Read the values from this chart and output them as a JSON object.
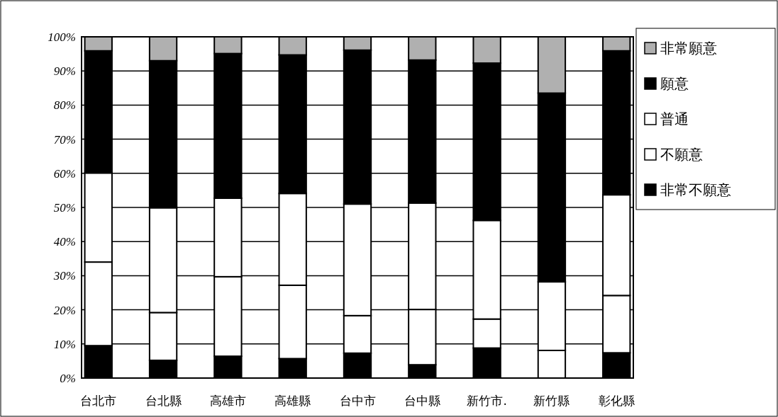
{
  "chart_data": {
    "type": "bar",
    "stacked": true,
    "categories": [
      "台北市",
      "台北縣",
      "高雄市",
      "高雄縣",
      "台中市",
      "台中縣",
      "新竹市.",
      "新竹縣",
      "彰化縣"
    ],
    "series": [
      {
        "name": "非常不願意",
        "color": "#000000",
        "values": [
          9.5,
          5.2,
          6.4,
          5.7,
          7.3,
          3.9,
          8.8,
          0,
          7.4
        ]
      },
      {
        "name": "不願意",
        "color": "#ffffff",
        "values": [
          24.5,
          14.0,
          23.3,
          21.5,
          11.0,
          16.2,
          8.5,
          8.1,
          16.8
        ]
      },
      {
        "name": "普通",
        "color": "#ffffff",
        "values": [
          26.1,
          30.7,
          23.0,
          26.9,
          32.7,
          31.2,
          28.9,
          20.1,
          29.5
        ]
      },
      {
        "name": "願意",
        "color": "#000000",
        "values": [
          35.8,
          43.1,
          42.4,
          40.6,
          45.1,
          41.9,
          46.1,
          55.3,
          42.2
        ]
      },
      {
        "name": "非常願意",
        "color": "#b0b0b0",
        "values": [
          4.1,
          7.0,
          4.9,
          5.3,
          3.9,
          6.8,
          7.7,
          16.5,
          4.1
        ]
      }
    ],
    "ylim": [
      0,
      100
    ],
    "yticks": [
      {
        "value": 0,
        "label": "0%"
      },
      {
        "value": 10,
        "label": "10%"
      },
      {
        "value": 20,
        "label": "20%"
      },
      {
        "value": 30,
        "label": "30%"
      },
      {
        "value": 40,
        "label": "40%"
      },
      {
        "value": 50,
        "label": "50%"
      },
      {
        "value": 60,
        "label": "60%"
      },
      {
        "value": 70,
        "label": "70%"
      },
      {
        "value": 80,
        "label": "80%"
      },
      {
        "value": 90,
        "label": "90%"
      },
      {
        "value": 100,
        "label": "100%"
      }
    ],
    "grid": "y",
    "legend": "right"
  }
}
